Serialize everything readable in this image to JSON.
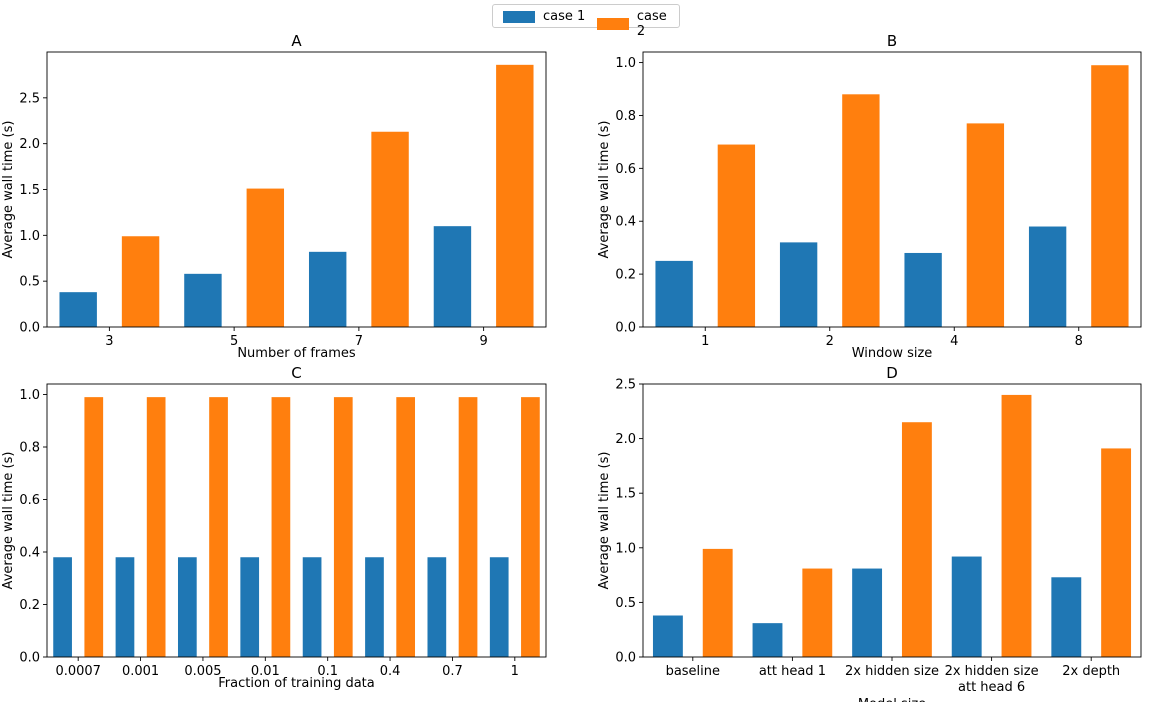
{
  "colors": {
    "case1": "#1f77b4",
    "case2": "#ff7f0e"
  },
  "legend": {
    "case1_label": "case 1",
    "case2_label": "case 2"
  },
  "chart_data": [
    {
      "type": "bar",
      "title": "A",
      "xlabel": "Number of frames",
      "ylabel": "Average wall time (s)",
      "categories": [
        "3",
        "5",
        "7",
        "9"
      ],
      "series": [
        {
          "name": "case 1",
          "values": [
            0.38,
            0.58,
            0.82,
            1.1
          ]
        },
        {
          "name": "case 2",
          "values": [
            0.99,
            1.51,
            2.13,
            2.86
          ]
        }
      ],
      "ylim": [
        0,
        3.0
      ],
      "yticks": [
        0.0,
        0.5,
        1.0,
        1.5,
        2.0,
        2.5
      ],
      "ytick_labels": [
        "0.0",
        "0.5",
        "1.0",
        "1.5",
        "2.0",
        "2.5"
      ]
    },
    {
      "type": "bar",
      "title": "B",
      "xlabel": "Window size",
      "ylabel": "Average wall time (s)",
      "categories": [
        "1",
        "2",
        "4",
        "8"
      ],
      "series": [
        {
          "name": "case 1",
          "values": [
            0.25,
            0.32,
            0.28,
            0.38
          ]
        },
        {
          "name": "case 2",
          "values": [
            0.69,
            0.88,
            0.77,
            0.99
          ]
        }
      ],
      "ylim": [
        0,
        1.04
      ],
      "yticks": [
        0.0,
        0.2,
        0.4,
        0.6,
        0.8,
        1.0
      ],
      "ytick_labels": [
        "0.0",
        "0.2",
        "0.4",
        "0.6",
        "0.8",
        "1.0"
      ]
    },
    {
      "type": "bar",
      "title": "C",
      "xlabel": "Fraction of training data",
      "ylabel": "Average wall time (s)",
      "categories": [
        "0.0007",
        "0.001",
        "0.005",
        "0.01",
        "0.1",
        "0.4",
        "0.7",
        "1"
      ],
      "series": [
        {
          "name": "case 1",
          "values": [
            0.38,
            0.38,
            0.38,
            0.38,
            0.38,
            0.38,
            0.38,
            0.38
          ]
        },
        {
          "name": "case 2",
          "values": [
            0.99,
            0.99,
            0.99,
            0.99,
            0.99,
            0.99,
            0.99,
            0.99
          ]
        }
      ],
      "ylim": [
        0,
        1.04
      ],
      "yticks": [
        0.0,
        0.2,
        0.4,
        0.6,
        0.8,
        1.0
      ],
      "ytick_labels": [
        "0.0",
        "0.2",
        "0.4",
        "0.6",
        "0.8",
        "1.0"
      ]
    },
    {
      "type": "bar",
      "title": "D",
      "xlabel": "Model size",
      "ylabel": "Average wall time (s)",
      "categories": [
        "baseline",
        "att head 1",
        "2x hidden size",
        "2x hidden size\natt head 6",
        "2x depth"
      ],
      "series": [
        {
          "name": "case 1",
          "values": [
            0.38,
            0.31,
            0.81,
            0.92,
            0.73
          ]
        },
        {
          "name": "case 2",
          "values": [
            0.99,
            0.81,
            2.15,
            2.4,
            1.91
          ]
        }
      ],
      "ylim": [
        0,
        2.5
      ],
      "yticks": [
        0.0,
        0.5,
        1.0,
        1.5,
        2.0,
        2.5
      ],
      "ytick_labels": [
        "0.0",
        "0.5",
        "1.0",
        "1.5",
        "2.0",
        "2.5"
      ]
    }
  ]
}
